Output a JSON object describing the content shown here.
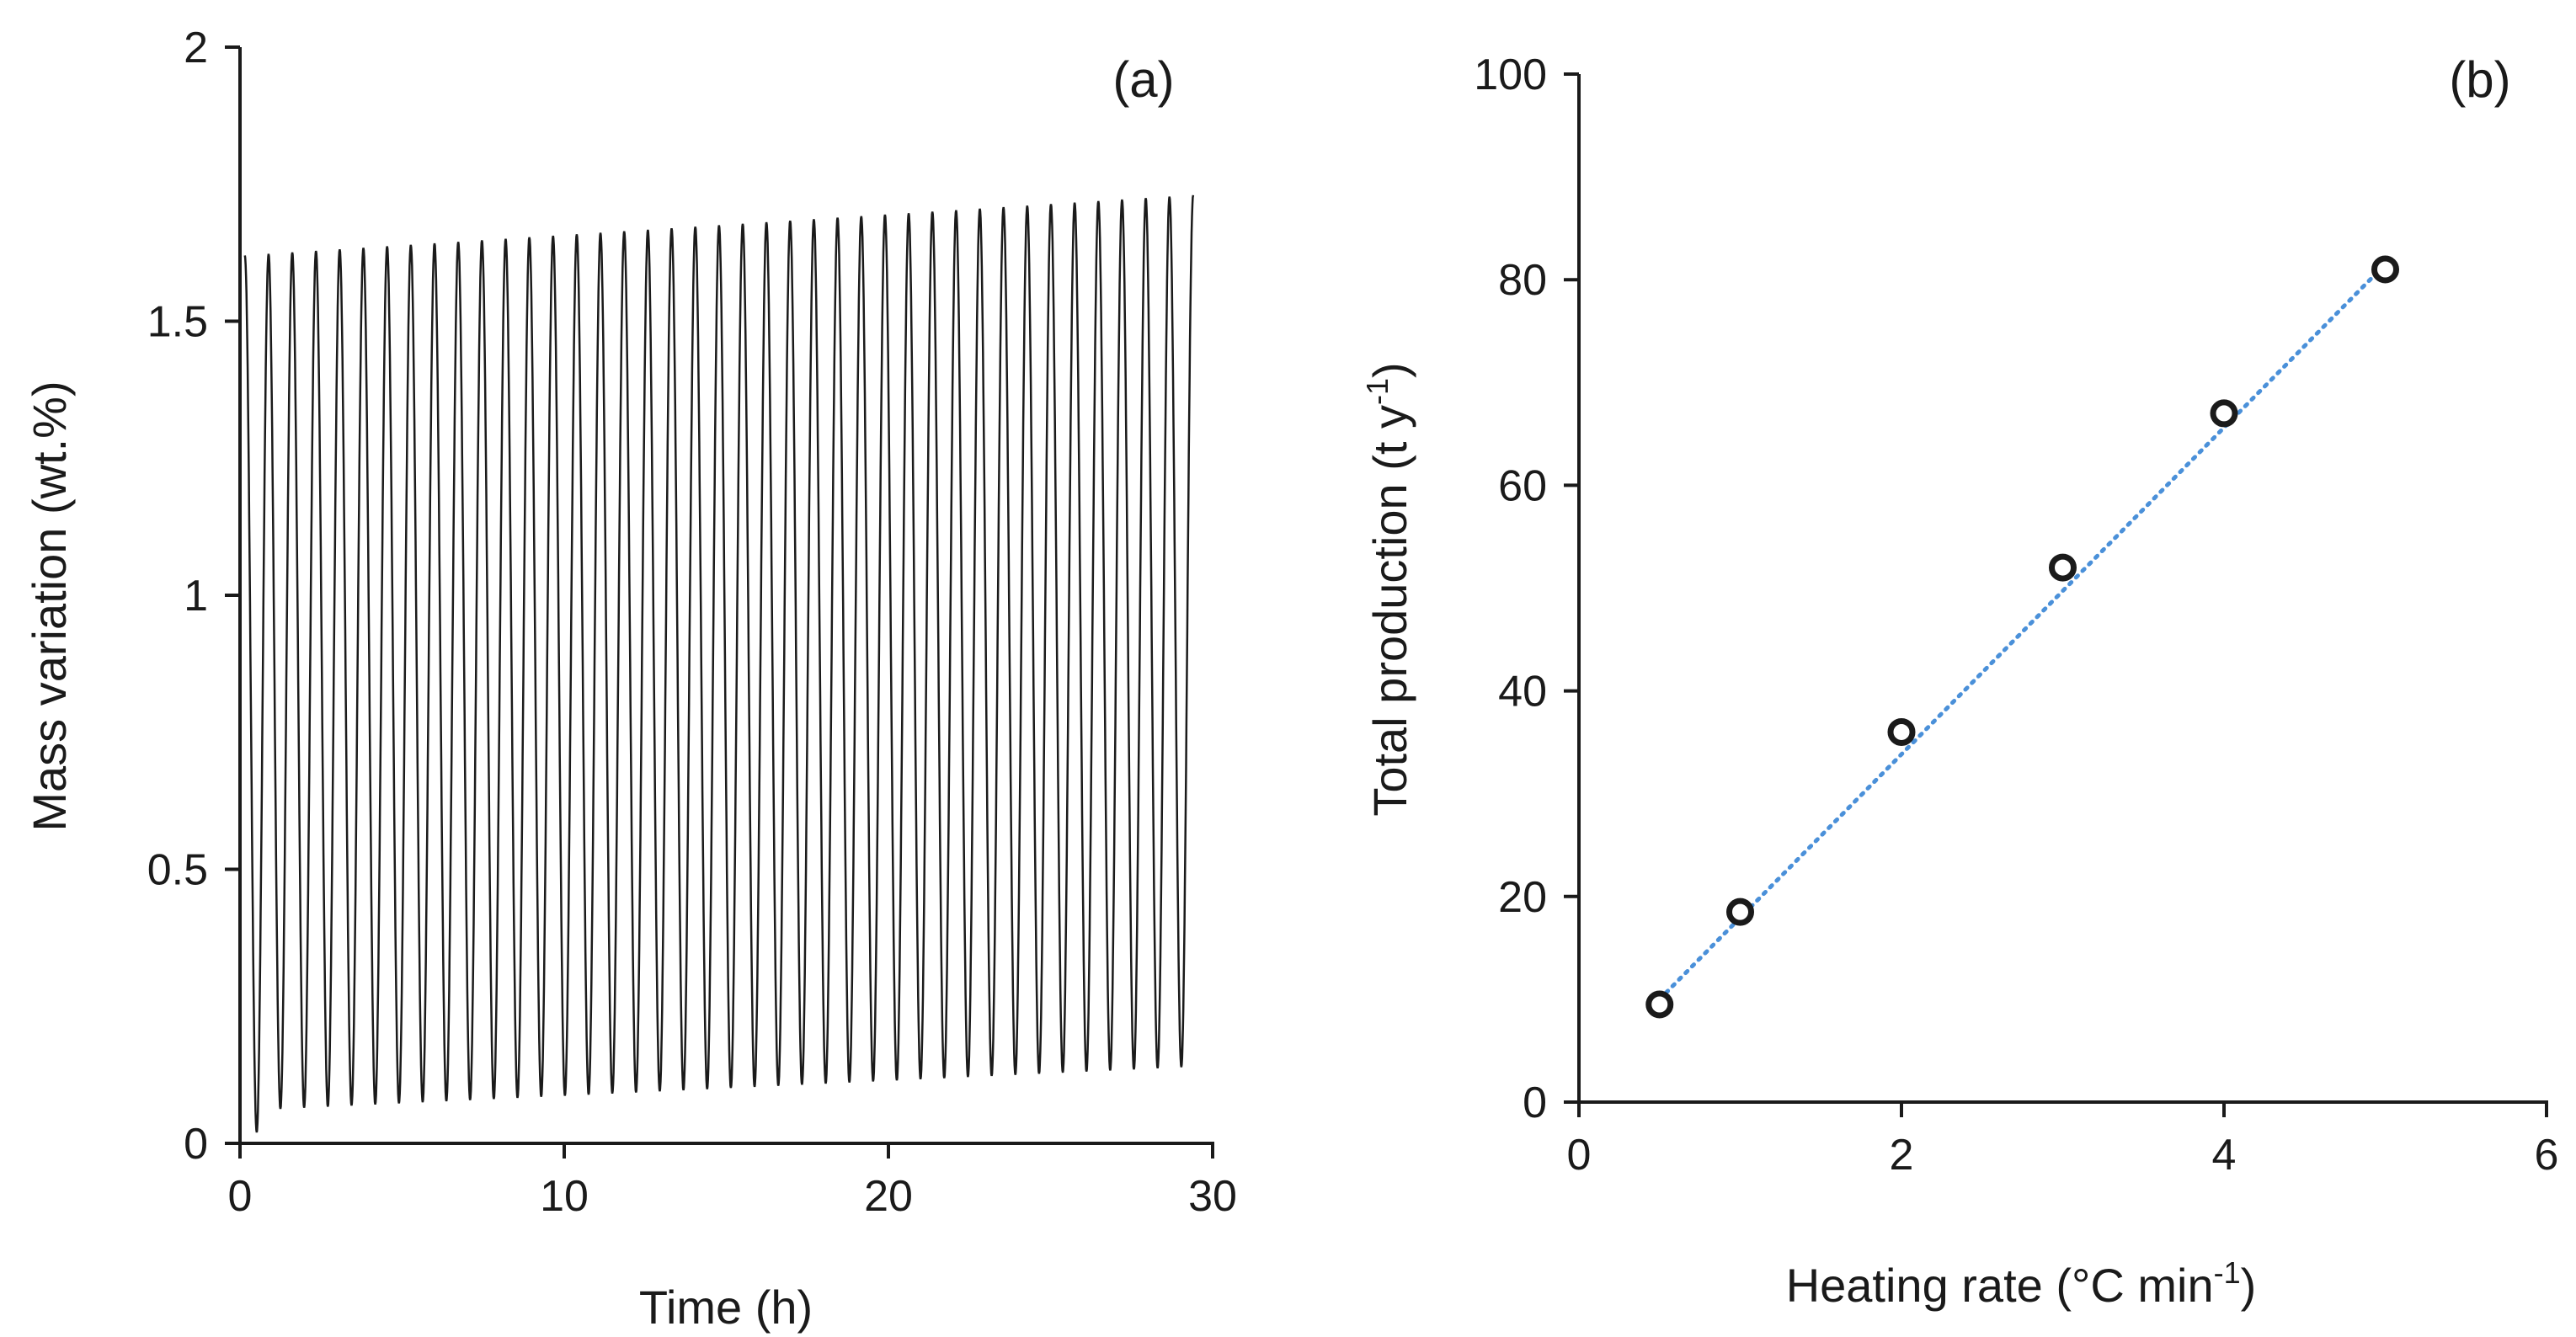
{
  "chart_data": [
    {
      "type": "line",
      "panel_label": "(a)",
      "xlabel": "Time (h)",
      "ylabel": "Mass variation (wt.%)",
      "xlim": [
        0,
        30
      ],
      "ylim": [
        0,
        2
      ],
      "xticks": [
        0,
        10,
        20,
        30
      ],
      "yticks": [
        0,
        0.5,
        1,
        1.5,
        2
      ],
      "ytick_labels": [
        "0",
        "0.5",
        "1",
        "1.5",
        "2"
      ],
      "grid": false,
      "series": [
        {
          "name": "Mass variation",
          "color": "#1a1a1a",
          "x_start": 0.15,
          "x_end": 29.4,
          "cycles": 40,
          "max_start": 1.62,
          "max_end": 1.73,
          "min_first": 0.02,
          "min_start": 0.06,
          "min_end": 0.14
        }
      ]
    },
    {
      "type": "scatter",
      "panel_label": "(b)",
      "xlabel": "Heating rate (°C min",
      "xlabel_sup": "-1",
      "xlabel_end": ")",
      "ylabel": "Total production (t y",
      "ylabel_sup": "-1",
      "ylabel_end": ")",
      "xlim": [
        0,
        6
      ],
      "ylim": [
        0,
        100
      ],
      "xticks": [
        0,
        2,
        4,
        6
      ],
      "yticks": [
        0,
        20,
        40,
        60,
        80,
        100
      ],
      "grid": false,
      "series": [
        {
          "name": "Total production",
          "marker_color": "#1a1a1a",
          "x": [
            0.5,
            1,
            2,
            3,
            4,
            5
          ],
          "y": [
            9.5,
            18.5,
            36,
            52,
            67,
            81
          ]
        }
      ],
      "trendline": {
        "style": "dotted",
        "color": "#4a90d9",
        "x": [
          0.5,
          5
        ],
        "y": [
          10,
          81.5
        ]
      }
    }
  ]
}
